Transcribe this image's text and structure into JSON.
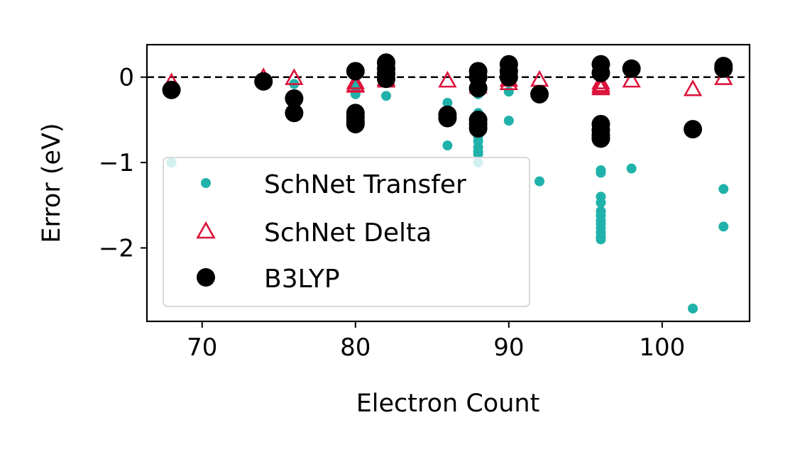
{
  "chart_data": {
    "type": "scatter",
    "xlabel": "Electron Count",
    "ylabel": "Error (eV)",
    "xlim": [
      66.4,
      105.7
    ],
    "ylim": [
      -2.86,
      0.38
    ],
    "xticks": [
      70,
      80,
      90,
      100
    ],
    "yticks": [
      0,
      -1,
      -2
    ],
    "xtick_labels": [
      "70",
      "80",
      "90",
      "100"
    ],
    "ytick_labels": [
      "0",
      "−1",
      "−2"
    ],
    "reference_line": {
      "y": 0,
      "style": "dashed"
    },
    "grid": false,
    "legend_position": "lower-left",
    "series": [
      {
        "name": "SchNet Transfer",
        "marker": "small-dot",
        "color": "#20b2aa",
        "points": [
          [
            68,
            -0.12
          ],
          [
            68,
            -1.0
          ],
          [
            74,
            -0.03
          ],
          [
            76,
            -0.08
          ],
          [
            80,
            -0.08
          ],
          [
            80,
            -0.12
          ],
          [
            80,
            -0.18
          ],
          [
            80,
            -0.2
          ],
          [
            82,
            -0.05
          ],
          [
            82,
            -0.22
          ],
          [
            86,
            -0.3
          ],
          [
            86,
            -0.8
          ],
          [
            88,
            -0.15
          ],
          [
            88,
            -0.2
          ],
          [
            88,
            -0.42
          ],
          [
            88,
            -0.55
          ],
          [
            88,
            -0.62
          ],
          [
            88,
            -0.7
          ],
          [
            88,
            -0.75
          ],
          [
            88,
            -0.82
          ],
          [
            88,
            -0.87
          ],
          [
            88,
            -0.9
          ],
          [
            88,
            -1.0
          ],
          [
            90,
            -0.17
          ],
          [
            90,
            -0.51
          ],
          [
            92,
            -0.22
          ],
          [
            92,
            -1.22
          ],
          [
            96,
            -1.09
          ],
          [
            96,
            -1.12
          ],
          [
            96,
            -1.4
          ],
          [
            96,
            -1.47
          ],
          [
            96,
            -1.57
          ],
          [
            96,
            -1.62
          ],
          [
            96,
            -1.68
          ],
          [
            96,
            -1.72
          ],
          [
            96,
            -1.77
          ],
          [
            96,
            -1.82
          ],
          [
            96,
            -1.87
          ],
          [
            96,
            -1.9
          ],
          [
            98,
            -1.07
          ],
          [
            102,
            -2.71
          ],
          [
            104,
            -1.31
          ],
          [
            104,
            -1.75
          ]
        ]
      },
      {
        "name": "SchNet Delta",
        "marker": "open-triangle",
        "color": "#dc143c",
        "points": [
          [
            68,
            -0.06
          ],
          [
            74,
            0.0
          ],
          [
            76,
            -0.01
          ],
          [
            80,
            -0.06
          ],
          [
            80,
            -0.09
          ],
          [
            80,
            -0.1
          ],
          [
            82,
            -0.02
          ],
          [
            82,
            -0.04
          ],
          [
            86,
            -0.04
          ],
          [
            88,
            -0.08
          ],
          [
            88,
            -0.11
          ],
          [
            90,
            -0.03
          ],
          [
            90,
            -0.07
          ],
          [
            92,
            -0.03
          ],
          [
            96,
            -0.06
          ],
          [
            96,
            -0.09
          ],
          [
            96,
            -0.11
          ],
          [
            96,
            -0.13
          ],
          [
            98,
            -0.04
          ],
          [
            102,
            -0.14
          ],
          [
            104,
            -0.01
          ]
        ]
      },
      {
        "name": "B3LYP",
        "marker": "filled-circle",
        "color": "#000000",
        "points": [
          [
            68,
            -0.15
          ],
          [
            74,
            -0.05
          ],
          [
            76,
            -0.25
          ],
          [
            76,
            -0.42
          ],
          [
            80,
            0.07
          ],
          [
            80,
            -0.42
          ],
          [
            80,
            -0.47
          ],
          [
            80,
            -0.52
          ],
          [
            80,
            -0.55
          ],
          [
            82,
            0.17
          ],
          [
            82,
            0.1
          ],
          [
            82,
            0.04
          ],
          [
            82,
            -0.02
          ],
          [
            86,
            -0.44
          ],
          [
            86,
            -0.48
          ],
          [
            88,
            0.07
          ],
          [
            88,
            0.0
          ],
          [
            88,
            -0.13
          ],
          [
            88,
            -0.5
          ],
          [
            88,
            -0.55
          ],
          [
            88,
            -0.6
          ],
          [
            90,
            0.15
          ],
          [
            90,
            0.07
          ],
          [
            90,
            0.0
          ],
          [
            92,
            -0.2
          ],
          [
            96,
            0.15
          ],
          [
            96,
            0.05
          ],
          [
            96,
            -0.55
          ],
          [
            96,
            -0.62
          ],
          [
            96,
            -0.68
          ],
          [
            96,
            -0.72
          ],
          [
            98,
            0.1
          ],
          [
            102,
            -0.61
          ],
          [
            104,
            0.13
          ],
          [
            104,
            0.1
          ]
        ]
      }
    ]
  }
}
